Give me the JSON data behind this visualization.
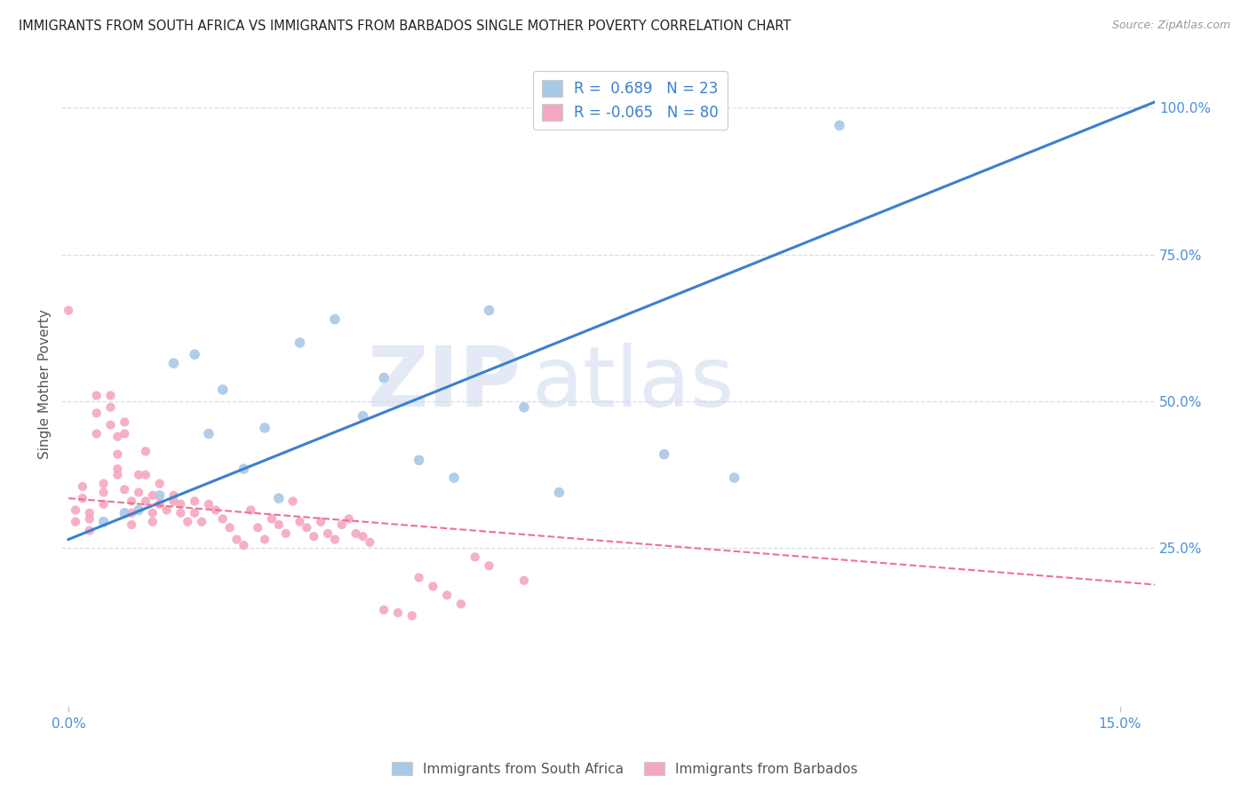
{
  "title": "IMMIGRANTS FROM SOUTH AFRICA VS IMMIGRANTS FROM BARBADOS SINGLE MOTHER POVERTY CORRELATION CHART",
  "source": "Source: ZipAtlas.com",
  "ylabel": "Single Mother Poverty",
  "xlim": [
    -0.001,
    0.155
  ],
  "ylim": [
    -0.02,
    1.08
  ],
  "ytick_vals_right": [
    0.25,
    0.5,
    0.75,
    1.0
  ],
  "r_blue": 0.689,
  "n_blue": 23,
  "r_pink": -0.065,
  "n_pink": 80,
  "blue_color": "#a8c8e8",
  "pink_color": "#f4a8c0",
  "blue_line_color": "#3a80d0",
  "pink_line_color": "#f07090",
  "watermark_zip": "ZIP",
  "watermark_atlas": "atlas",
  "legend_label_blue": "Immigrants from South Africa",
  "legend_label_pink": "Immigrants from Barbados",
  "blue_scatter_x": [
    0.005,
    0.008,
    0.01,
    0.013,
    0.015,
    0.018,
    0.02,
    0.022,
    0.025,
    0.028,
    0.03,
    0.033,
    0.038,
    0.042,
    0.045,
    0.05,
    0.055,
    0.06,
    0.065,
    0.07,
    0.085,
    0.095,
    0.11
  ],
  "blue_scatter_y": [
    0.295,
    0.31,
    0.315,
    0.34,
    0.565,
    0.58,
    0.445,
    0.52,
    0.385,
    0.455,
    0.335,
    0.6,
    0.64,
    0.475,
    0.54,
    0.4,
    0.37,
    0.655,
    0.49,
    0.345,
    0.41,
    0.37,
    0.97
  ],
  "pink_scatter_x": [
    0.0,
    0.001,
    0.001,
    0.002,
    0.002,
    0.003,
    0.003,
    0.003,
    0.004,
    0.004,
    0.004,
    0.005,
    0.005,
    0.005,
    0.006,
    0.006,
    0.006,
    0.007,
    0.007,
    0.007,
    0.007,
    0.008,
    0.008,
    0.008,
    0.009,
    0.009,
    0.009,
    0.01,
    0.01,
    0.011,
    0.011,
    0.011,
    0.012,
    0.012,
    0.012,
    0.013,
    0.013,
    0.014,
    0.015,
    0.015,
    0.016,
    0.016,
    0.017,
    0.018,
    0.018,
    0.019,
    0.02,
    0.021,
    0.022,
    0.023,
    0.024,
    0.025,
    0.026,
    0.027,
    0.028,
    0.029,
    0.03,
    0.031,
    0.032,
    0.033,
    0.034,
    0.035,
    0.036,
    0.037,
    0.038,
    0.039,
    0.04,
    0.041,
    0.042,
    0.043,
    0.045,
    0.047,
    0.049,
    0.05,
    0.052,
    0.054,
    0.056,
    0.058,
    0.06,
    0.065
  ],
  "pink_scatter_y": [
    0.655,
    0.315,
    0.295,
    0.355,
    0.335,
    0.31,
    0.3,
    0.28,
    0.445,
    0.48,
    0.51,
    0.36,
    0.345,
    0.325,
    0.51,
    0.49,
    0.46,
    0.44,
    0.41,
    0.385,
    0.375,
    0.465,
    0.445,
    0.35,
    0.33,
    0.31,
    0.29,
    0.375,
    0.345,
    0.415,
    0.375,
    0.33,
    0.34,
    0.31,
    0.295,
    0.36,
    0.325,
    0.315,
    0.34,
    0.33,
    0.325,
    0.31,
    0.295,
    0.33,
    0.31,
    0.295,
    0.325,
    0.315,
    0.3,
    0.285,
    0.265,
    0.255,
    0.315,
    0.285,
    0.265,
    0.3,
    0.29,
    0.275,
    0.33,
    0.295,
    0.285,
    0.27,
    0.295,
    0.275,
    0.265,
    0.29,
    0.3,
    0.275,
    0.27,
    0.26,
    0.145,
    0.14,
    0.135,
    0.2,
    0.185,
    0.17,
    0.155,
    0.235,
    0.22,
    0.195
  ],
  "blue_trendline_x": [
    0.0,
    0.155
  ],
  "blue_trendline_y": [
    0.265,
    1.01
  ],
  "pink_trendline_x": [
    0.0,
    0.155
  ],
  "pink_trendline_y": [
    0.335,
    0.188
  ],
  "background_color": "#ffffff",
  "grid_color": "#d8dfe8",
  "title_color": "#222222",
  "axis_label_color": "#4a90d9",
  "right_tick_color": "#4a90d9"
}
